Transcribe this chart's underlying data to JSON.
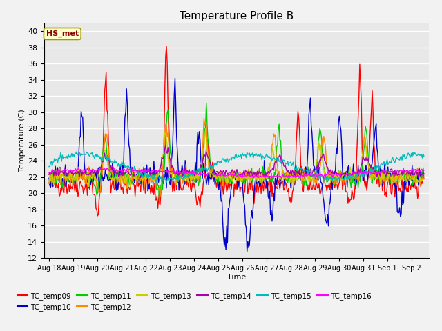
{
  "title": "Temperature Profile B",
  "xlabel": "Time",
  "ylabel": "Temperature (C)",
  "ylim": [
    12,
    41
  ],
  "yticks": [
    12,
    14,
    16,
    18,
    20,
    22,
    24,
    26,
    28,
    30,
    32,
    34,
    36,
    38,
    40
  ],
  "annotation_text": "HS_met",
  "annotation_color": "#8B0000",
  "annotation_bg": "#FFFFCC",
  "annotation_edge": "#999900",
  "bg_color": "#F2F2F2",
  "plot_bg": "#E8E8E8",
  "series_colors": {
    "TC_temp09": "#FF0000",
    "TC_temp10": "#0000CC",
    "TC_temp11": "#00CC00",
    "TC_temp12": "#FF8800",
    "TC_temp13": "#CCCC00",
    "TC_temp14": "#AA00AA",
    "TC_temp15": "#00BBBB",
    "TC_temp16": "#FF00FF"
  },
  "date_labels": [
    "Aug 18",
    "Aug 19",
    "Aug 20",
    "Aug 21",
    "Aug 22",
    "Aug 23",
    "Aug 24",
    "Aug 25",
    "Aug 26",
    "Aug 27",
    "Aug 28",
    "Aug 29",
    "Aug 30",
    "Aug 31",
    "Sep 1",
    "Sep 2"
  ],
  "n_points": 480,
  "start_day": 0,
  "end_day": 15.5,
  "seed": 42
}
